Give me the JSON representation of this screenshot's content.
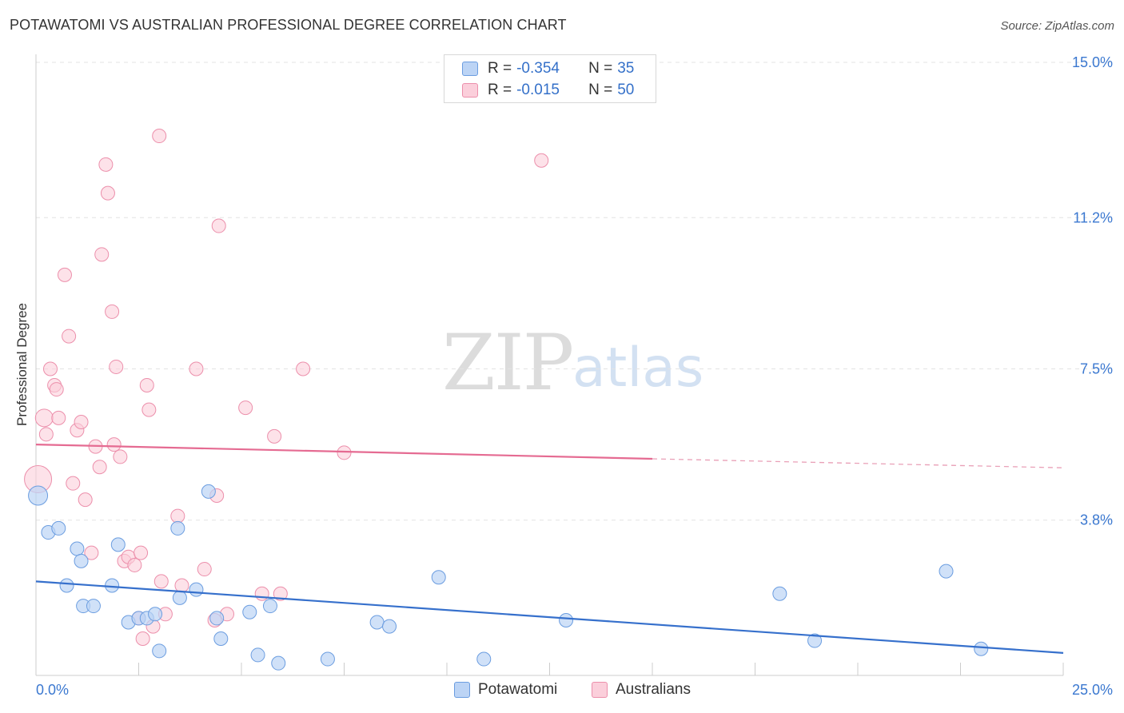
{
  "header": {
    "title": "POTAWATOMI VS AUSTRALIAN PROFESSIONAL DEGREE CORRELATION CHART",
    "source": "Source: ZipAtlas.com"
  },
  "watermark": {
    "zip": "ZIP",
    "atlas": "atlas"
  },
  "legend": {
    "rows": [
      {
        "r_label": "R = ",
        "r_value": "-0.354",
        "n_label": "N = ",
        "n_value": "35",
        "color": "#6b9de0"
      },
      {
        "r_label": "R = ",
        "r_value": "-0.015",
        "n_label": "N = ",
        "n_value": "50",
        "color": "#ec8fab"
      }
    ]
  },
  "bottom_legend": {
    "items": [
      "Potawatomi",
      "Australians"
    ]
  },
  "chart_data": {
    "type": "scatter",
    "title": "POTAWATOMI VS AUSTRALIAN PROFESSIONAL DEGREE CORRELATION CHART",
    "ylabel": "Professional Degree",
    "xlabel": "",
    "xlim": [
      0,
      25
    ],
    "ylim": [
      0,
      15
    ],
    "x_ticks_labels": [
      "0.0%",
      "25.0%"
    ],
    "y_ticks": [
      3.8,
      7.5,
      11.2,
      15.0
    ],
    "y_ticks_labels": [
      "3.8%",
      "7.5%",
      "11.2%",
      "15.0%"
    ],
    "grid": true,
    "legend_placement": "top-center",
    "series": [
      {
        "name": "Potawatomi",
        "color": "#6b9de0",
        "fill": "#bcd4f5",
        "trend": {
          "x": [
            0,
            25
          ],
          "y": [
            2.3,
            0.55
          ]
        },
        "points": [
          [
            0.05,
            4.4
          ],
          [
            0.3,
            3.5
          ],
          [
            0.55,
            3.6
          ],
          [
            0.75,
            2.2
          ],
          [
            1.0,
            3.1
          ],
          [
            1.1,
            2.8
          ],
          [
            1.15,
            1.7
          ],
          [
            1.4,
            1.7
          ],
          [
            1.85,
            2.2
          ],
          [
            2.0,
            3.2
          ],
          [
            2.25,
            1.3
          ],
          [
            2.5,
            1.4
          ],
          [
            2.7,
            1.4
          ],
          [
            2.9,
            1.5
          ],
          [
            3.0,
            0.6
          ],
          [
            3.45,
            3.6
          ],
          [
            3.5,
            1.9
          ],
          [
            3.9,
            2.1
          ],
          [
            4.2,
            4.5
          ],
          [
            4.4,
            1.4
          ],
          [
            4.5,
            0.9
          ],
          [
            5.2,
            1.55
          ],
          [
            5.4,
            0.5
          ],
          [
            5.7,
            1.7
          ],
          [
            5.9,
            0.3
          ],
          [
            7.1,
            0.4
          ],
          [
            8.3,
            1.3
          ],
          [
            8.6,
            1.2
          ],
          [
            9.8,
            2.4
          ],
          [
            10.9,
            0.4
          ],
          [
            12.9,
            1.35
          ],
          [
            18.1,
            2.0
          ],
          [
            18.95,
            0.85
          ],
          [
            22.15,
            2.55
          ],
          [
            23.0,
            0.65
          ]
        ]
      },
      {
        "name": "Australians",
        "color": "#ec8fab",
        "fill": "#fbcfdb",
        "trend": {
          "x": [
            0,
            15
          ],
          "y": [
            5.65,
            5.3
          ]
        },
        "trend_dashed": {
          "x": [
            15,
            25
          ],
          "y": [
            5.3,
            5.08
          ]
        },
        "points": [
          [
            0.05,
            4.8
          ],
          [
            0.2,
            6.3
          ],
          [
            0.25,
            5.9
          ],
          [
            0.35,
            7.5
          ],
          [
            0.45,
            7.1
          ],
          [
            0.5,
            7.0
          ],
          [
            0.55,
            6.3
          ],
          [
            0.7,
            9.8
          ],
          [
            0.8,
            8.3
          ],
          [
            0.9,
            4.7
          ],
          [
            1.0,
            6.0
          ],
          [
            1.1,
            6.2
          ],
          [
            1.2,
            4.3
          ],
          [
            1.35,
            3.0
          ],
          [
            1.45,
            5.6
          ],
          [
            1.55,
            5.1
          ],
          [
            1.6,
            10.3
          ],
          [
            1.7,
            12.5
          ],
          [
            1.75,
            11.8
          ],
          [
            1.85,
            8.9
          ],
          [
            1.9,
            5.65
          ],
          [
            1.95,
            7.55
          ],
          [
            2.05,
            5.35
          ],
          [
            2.15,
            2.8
          ],
          [
            2.25,
            2.9
          ],
          [
            2.4,
            2.7
          ],
          [
            2.5,
            1.4
          ],
          [
            2.55,
            3.0
          ],
          [
            2.6,
            0.9
          ],
          [
            2.7,
            7.1
          ],
          [
            2.75,
            6.5
          ],
          [
            2.85,
            1.2
          ],
          [
            3.0,
            13.2
          ],
          [
            3.05,
            2.3
          ],
          [
            3.15,
            1.5
          ],
          [
            3.45,
            3.9
          ],
          [
            3.55,
            2.2
          ],
          [
            3.9,
            7.5
          ],
          [
            4.1,
            2.6
          ],
          [
            4.35,
            1.35
          ],
          [
            4.4,
            4.4
          ],
          [
            4.45,
            11.0
          ],
          [
            4.65,
            1.5
          ],
          [
            5.1,
            6.55
          ],
          [
            5.5,
            2.0
          ],
          [
            5.8,
            5.85
          ],
          [
            5.95,
            2.0
          ],
          [
            6.5,
            7.5
          ],
          [
            7.5,
            5.45
          ],
          [
            12.3,
            12.6
          ]
        ]
      }
    ]
  }
}
